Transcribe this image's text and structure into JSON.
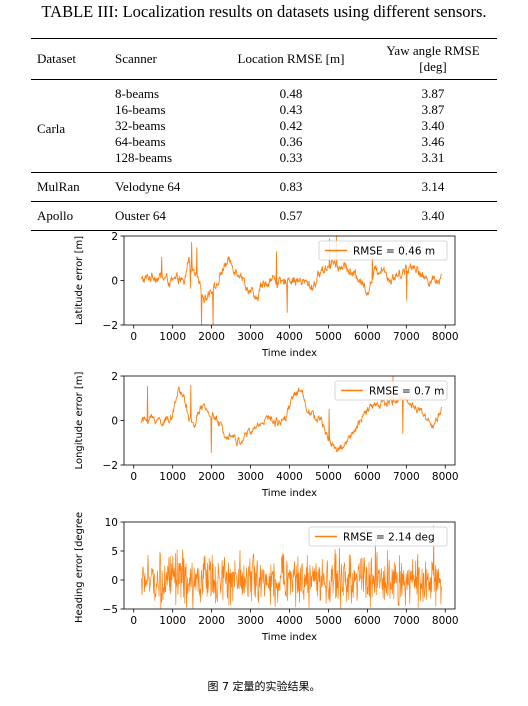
{
  "table": {
    "caption": "TABLE III: Localization results on datasets using different sensors.",
    "headers": [
      "Dataset",
      "Scanner",
      "Location RMSE [m]",
      "Yaw angle RMSE [deg]"
    ],
    "groups": [
      {
        "dataset": "Carla",
        "rows": [
          {
            "scanner": "8-beams",
            "location_rmse": "0.48",
            "yaw_rmse": "3.87"
          },
          {
            "scanner": "16-beams",
            "location_rmse": "0.43",
            "yaw_rmse": "3.87"
          },
          {
            "scanner": "32-beams",
            "location_rmse": "0.42",
            "yaw_rmse": "3.40"
          },
          {
            "scanner": "64-beams",
            "location_rmse": "0.36",
            "yaw_rmse": "3.46"
          },
          {
            "scanner": "128-beams",
            "location_rmse": "0.33",
            "yaw_rmse": "3.31"
          }
        ]
      },
      {
        "dataset": "MulRan",
        "rows": [
          {
            "scanner": "Velodyne 64",
            "location_rmse": "0.83",
            "yaw_rmse": "3.14"
          }
        ]
      },
      {
        "dataset": "Apollo",
        "rows": [
          {
            "scanner": "Ouster 64",
            "location_rmse": "0.57",
            "yaw_rmse": "3.40"
          }
        ]
      }
    ]
  },
  "chart_data": [
    {
      "type": "line",
      "xlabel": "Time index",
      "ylabel": "Latitude error [m]",
      "xlim": [
        -250,
        8250
      ],
      "ylim": [
        -2,
        2
      ],
      "xticks": [
        "0",
        "1000",
        "2000",
        "3000",
        "4000",
        "5000",
        "6000",
        "7000",
        "8000"
      ],
      "yticks": [
        "−2",
        "0",
        "2"
      ],
      "legend": "RMSE = 0.46 m",
      "legend_position": "top-right",
      "color": "#ff7f0e",
      "x_range": [
        200,
        7900
      ],
      "series": [
        {
          "anchors_x": [
            200,
            500,
            800,
            1000,
            1150,
            1300,
            1400,
            1550,
            1700,
            1800,
            1950,
            2150,
            2300,
            2450,
            2600,
            2750,
            2900,
            3050,
            3150,
            3250,
            3400,
            3600,
            3800,
            4000,
            4200,
            4400,
            4600,
            4800,
            4950,
            5100,
            5250,
            5400,
            5600,
            5800,
            6000,
            6200,
            6400,
            6600,
            6800,
            7000,
            7200,
            7400,
            7600,
            7900
          ],
          "anchors_y": [
            0.0,
            0.2,
            0.1,
            -0.1,
            0.1,
            -0.2,
            1.0,
            0.3,
            -0.3,
            -0.8,
            -0.5,
            -0.2,
            0.6,
            0.9,
            0.5,
            0.3,
            -0.3,
            -0.6,
            -1.0,
            -0.3,
            -0.1,
            0.1,
            -0.2,
            0.1,
            0.0,
            -0.1,
            -0.3,
            0.4,
            0.6,
            0.9,
            0.5,
            0.7,
            0.3,
            0.1,
            -0.5,
            0.4,
            0.6,
            0.0,
            0.3,
            0.5,
            0.7,
            0.2,
            0.0,
            0.1
          ],
          "noise": 0.35
        }
      ]
    },
    {
      "type": "line",
      "xlabel": "Time index",
      "ylabel": "Longitude error [m]",
      "xlim": [
        -250,
        8250
      ],
      "ylim": [
        -2,
        2
      ],
      "xticks": [
        "0",
        "1000",
        "2000",
        "3000",
        "4000",
        "5000",
        "6000",
        "7000",
        "8000"
      ],
      "yticks": [
        "−2",
        "0",
        "2"
      ],
      "legend": "RMSE = 0.7 m",
      "legend_position": "top-right",
      "color": "#ff7f0e",
      "x_range": [
        200,
        7900
      ],
      "series": [
        {
          "anchors_x": [
            200,
            500,
            800,
            1000,
            1150,
            1300,
            1400,
            1550,
            1700,
            1900,
            2100,
            2300,
            2500,
            2700,
            2900,
            3100,
            3300,
            3500,
            3700,
            3900,
            4100,
            4300,
            4450,
            4600,
            4800,
            5000,
            5200,
            5350,
            5500,
            5700,
            5900,
            6100,
            6300,
            6500,
            6700,
            6900,
            7100,
            7300,
            7500,
            7700,
            7900
          ],
          "anchors_y": [
            0.0,
            0.1,
            -0.1,
            0.3,
            1.4,
            1.0,
            0.2,
            -0.3,
            0.6,
            0.4,
            0.1,
            -0.5,
            -0.6,
            -1.0,
            -0.6,
            -0.4,
            0.0,
            0.1,
            -0.1,
            0.2,
            1.2,
            1.4,
            0.6,
            0.2,
            0.0,
            -0.8,
            -1.3,
            -1.2,
            -0.8,
            -0.5,
            0.3,
            0.6,
            0.7,
            0.8,
            0.9,
            1.0,
            0.8,
            0.5,
            0.2,
            -0.3,
            0.5
          ],
          "noise": 0.3
        }
      ]
    },
    {
      "type": "line",
      "xlabel": "Time index",
      "ylabel": "Heading error [degree]",
      "xlim": [
        -250,
        8250
      ],
      "ylim": [
        -5,
        10
      ],
      "xticks": [
        "0",
        "1000",
        "2000",
        "3000",
        "4000",
        "5000",
        "6000",
        "7000",
        "8000"
      ],
      "yticks": [
        "−5",
        "0",
        "5",
        "10"
      ],
      "legend": "RMSE = 2.14 deg",
      "legend_position": "top-right",
      "color": "#ff7f0e",
      "x_range": [
        200,
        7900
      ],
      "series": [
        {
          "anchors_x": [
            200,
            7900
          ],
          "anchors_y": [
            0.0,
            0.0
          ],
          "noise": 2.1
        }
      ]
    }
  ],
  "figure_caption": "图 7 定量的实验结果。"
}
